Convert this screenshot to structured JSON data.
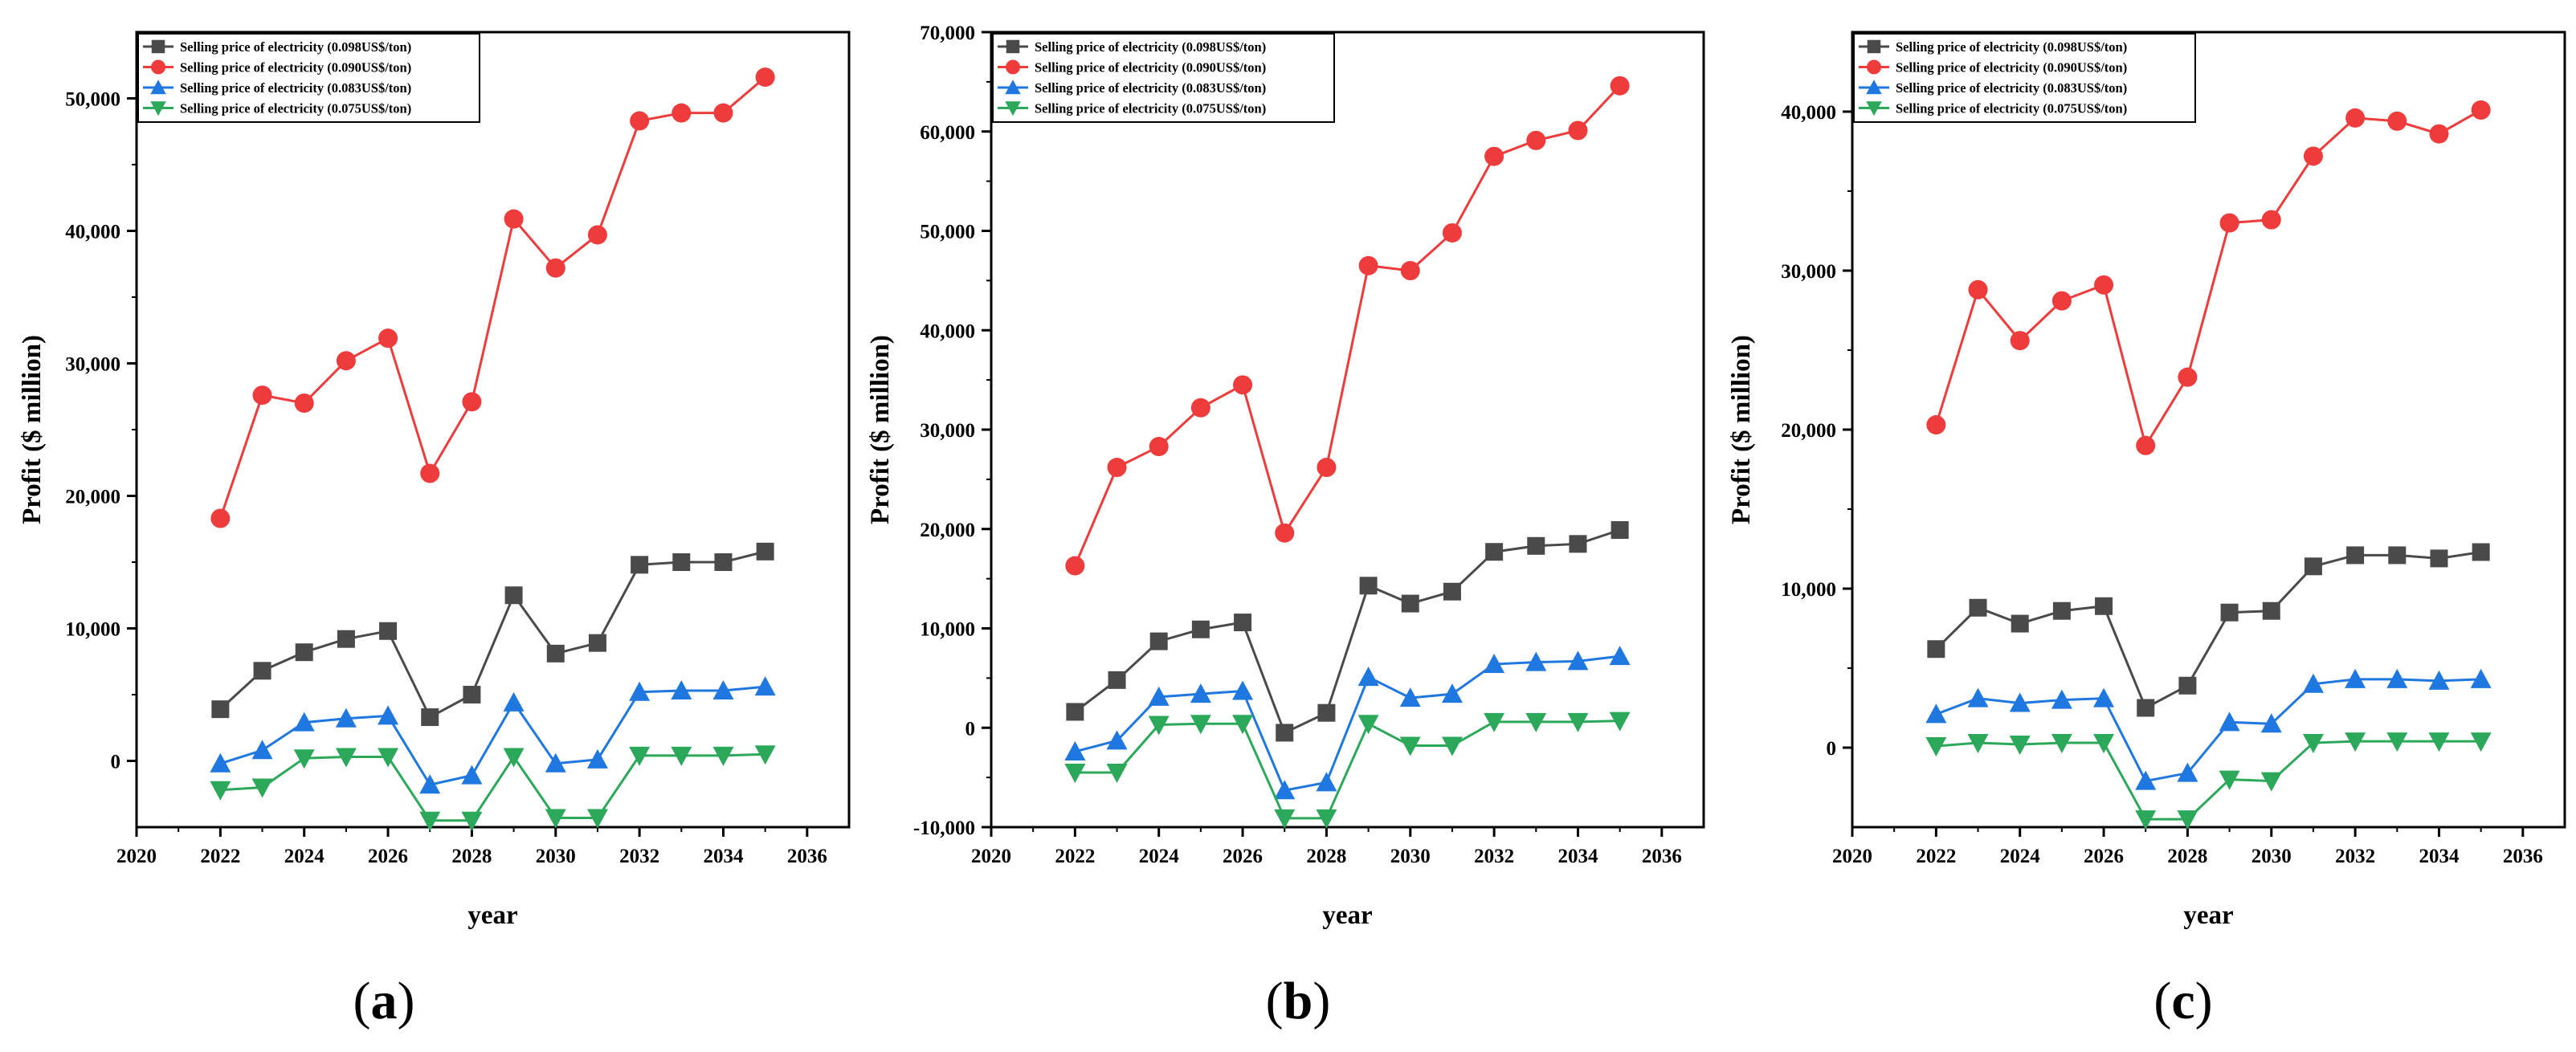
{
  "chart_data": [
    {
      "type": "line",
      "panel": "a",
      "title": "",
      "xlabel": "year",
      "ylabel": "Profit ($ million)",
      "caption": {
        "open": "(",
        "letter": "a",
        "close": ")"
      },
      "xlim": [
        2020,
        2037
      ],
      "ylim": [
        -5000,
        55000
      ],
      "xticks": [
        2020,
        2022,
        2024,
        2026,
        2028,
        2030,
        2032,
        2034,
        2036
      ],
      "xtick_labels": [
        "2020",
        "2022",
        "2024",
        "2026",
        "2028",
        "2030",
        "2032",
        "2034",
        "2036"
      ],
      "yticks": [
        0,
        10000,
        20000,
        30000,
        40000,
        50000
      ],
      "ytick_labels": [
        "0",
        "10,000",
        "20,000",
        "30,000",
        "40,000",
        "50,000"
      ],
      "legend_position": "top-left",
      "x": [
        2022,
        2023,
        2024,
        2025,
        2026,
        2027,
        2028,
        2029,
        2030,
        2031,
        2032,
        2033,
        2034,
        2035
      ],
      "series": [
        {
          "name": "Selling price of electricity (0.098US$/ton)",
          "color": "#4a4a4a",
          "marker": "square",
          "values": [
            3900,
            6800,
            8200,
            9200,
            9800,
            3300,
            5000,
            12500,
            8100,
            8900,
            14800,
            15000,
            15000,
            15800
          ]
        },
        {
          "name": "Selling price of electricity (0.090US$/ton)",
          "color": "#ee3b3b",
          "marker": "circle",
          "values": [
            18300,
            27600,
            27000,
            30200,
            31900,
            21700,
            27100,
            40900,
            37200,
            39700,
            48300,
            48900,
            48900,
            51600
          ]
        },
        {
          "name": "Selling price of electricity (0.083US$/ton)",
          "color": "#1f77e0",
          "marker": "triangle-up",
          "values": [
            -200,
            800,
            2900,
            3200,
            3400,
            -1800,
            -1100,
            4400,
            -200,
            100,
            5200,
            5300,
            5300,
            5600
          ]
        },
        {
          "name": "Selling price of electricity (0.075US$/ton)",
          "color": "#2ca85a",
          "marker": "triangle-down",
          "values": [
            -2200,
            -2000,
            200,
            300,
            300,
            -4500,
            -4500,
            300,
            -4300,
            -4300,
            400,
            400,
            400,
            500
          ]
        }
      ]
    },
    {
      "type": "line",
      "panel": "b",
      "title": "",
      "xlabel": "year",
      "ylabel": "Profit ($ million)",
      "caption": {
        "open": "(",
        "letter": "b",
        "close": ")"
      },
      "xlim": [
        2020,
        2037
      ],
      "ylim": [
        -10000,
        70000
      ],
      "xticks": [
        2020,
        2022,
        2024,
        2026,
        2028,
        2030,
        2032,
        2034,
        2036
      ],
      "xtick_labels": [
        "2020",
        "2022",
        "2024",
        "2026",
        "2028",
        "2030",
        "2032",
        "2034",
        "2036"
      ],
      "yticks": [
        -10000,
        0,
        10000,
        20000,
        30000,
        40000,
        50000,
        60000,
        70000
      ],
      "ytick_labels": [
        "-10,000",
        "0",
        "10,000",
        "20,000",
        "30,000",
        "40,000",
        "50,000",
        "60,000",
        "70,000"
      ],
      "legend_position": "top-left",
      "x": [
        2022,
        2023,
        2024,
        2025,
        2026,
        2027,
        2028,
        2029,
        2030,
        2031,
        2032,
        2033,
        2034,
        2035
      ],
      "series": [
        {
          "name": "Selling price of electricity (0.098US$/ton)",
          "color": "#4a4a4a",
          "marker": "square",
          "values": [
            1600,
            4800,
            8700,
            9900,
            10600,
            -500,
            1500,
            14300,
            12500,
            13700,
            17700,
            18300,
            18500,
            19900
          ]
        },
        {
          "name": "Selling price of electricity (0.090US$/ton)",
          "color": "#ee3b3b",
          "marker": "circle",
          "values": [
            16300,
            26200,
            28300,
            32200,
            34500,
            19600,
            26200,
            46500,
            46000,
            49800,
            57500,
            59100,
            60100,
            64600
          ]
        },
        {
          "name": "Selling price of electricity (0.083US$/ton)",
          "color": "#1f77e0",
          "marker": "triangle-up",
          "values": [
            -2400,
            -1300,
            3100,
            3400,
            3700,
            -6300,
            -5500,
            5100,
            3000,
            3400,
            6400,
            6600,
            6700,
            7200
          ]
        },
        {
          "name": "Selling price of electricity (0.075US$/ton)",
          "color": "#2ca85a",
          "marker": "triangle-down",
          "values": [
            -4500,
            -4500,
            300,
            400,
            400,
            -9100,
            -9100,
            400,
            -1800,
            -1800,
            600,
            600,
            600,
            700
          ]
        }
      ]
    },
    {
      "type": "line",
      "panel": "c",
      "title": "",
      "xlabel": "year",
      "ylabel": "Profit ($ million)",
      "caption": {
        "open": "(",
        "letter": "c",
        "close": ")"
      },
      "xlim": [
        2020,
        2037
      ],
      "ylim": [
        -5000,
        45000
      ],
      "xticks": [
        2020,
        2022,
        2024,
        2026,
        2028,
        2030,
        2032,
        2034,
        2036
      ],
      "xtick_labels": [
        "2020",
        "2022",
        "2024",
        "2026",
        "2028",
        "2030",
        "2032",
        "2034",
        "2036"
      ],
      "yticks": [
        0,
        10000,
        20000,
        30000,
        40000
      ],
      "ytick_labels": [
        "0",
        "10,000",
        "20,000",
        "30,000",
        "40,000"
      ],
      "legend_position": "top-left",
      "x": [
        2022,
        2023,
        2024,
        2025,
        2026,
        2027,
        2028,
        2029,
        2030,
        2031,
        2032,
        2033,
        2034,
        2035
      ],
      "series": [
        {
          "name": "Selling price of electricity (0.098US$/ton)",
          "color": "#4a4a4a",
          "marker": "square",
          "values": [
            6200,
            8800,
            7800,
            8600,
            8900,
            2500,
            3900,
            8500,
            8600,
            11400,
            12100,
            12100,
            11900,
            12300
          ]
        },
        {
          "name": "Selling price of electricity (0.090US$/ton)",
          "color": "#ee3b3b",
          "marker": "circle",
          "values": [
            20300,
            28800,
            25600,
            28100,
            29100,
            19000,
            23300,
            33000,
            33200,
            37200,
            39600,
            39400,
            38600,
            40100
          ]
        },
        {
          "name": "Selling price of electricity (0.083US$/ton)",
          "color": "#1f77e0",
          "marker": "triangle-up",
          "values": [
            2100,
            3100,
            2800,
            3000,
            3100,
            -2100,
            -1600,
            1600,
            1500,
            4000,
            4300,
            4300,
            4200,
            4300
          ]
        },
        {
          "name": "Selling price of electricity (0.075US$/ton)",
          "color": "#2ca85a",
          "marker": "triangle-down",
          "values": [
            100,
            300,
            200,
            300,
            300,
            -4500,
            -4500,
            -2000,
            -2100,
            300,
            400,
            400,
            400,
            400
          ]
        }
      ]
    }
  ]
}
